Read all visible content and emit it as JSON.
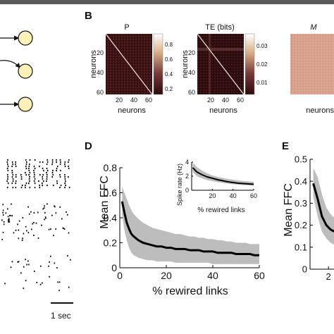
{
  "panels": {
    "B": {
      "letter": "B",
      "heatmaps": [
        {
          "title": "P",
          "ylabel": "neurons",
          "xlabel": "neurons",
          "xticks": [
            "20",
            "40",
            "60"
          ],
          "yticks": [
            "20",
            "40",
            "60"
          ],
          "colorbar_ticks": [
            "0.8",
            "0.6",
            "0.4",
            "0.2"
          ]
        },
        {
          "title": "TE (bits)",
          "ylabel": "neurons",
          "xlabel": "neurons",
          "xticks": [
            "20",
            "40",
            "60"
          ],
          "yticks": [
            "20",
            "40",
            "60"
          ],
          "colorbar_ticks": [
            "0.03",
            "0.02",
            "0.01"
          ]
        },
        {
          "title": "M",
          "xlabel": "neurons"
        }
      ]
    },
    "D": {
      "letter": "D"
    },
    "E": {
      "letter": "E"
    },
    "raster": {
      "scalebar_label": "1 sec"
    }
  },
  "chart_data": [
    {
      "type": "line",
      "panel": "D",
      "xlabel": "% rewired links",
      "ylabel": "Mean FFC",
      "xlim": [
        0,
        60
      ],
      "ylim": [
        0,
        0.8
      ],
      "xticks": [
        "0",
        "20",
        "40",
        "60"
      ],
      "yticks": [
        "0",
        "0.2",
        "0.4",
        "0.6",
        "0.8"
      ],
      "x": [
        1,
        2,
        3,
        4,
        5,
        6,
        8,
        10,
        12,
        14,
        16,
        18,
        20,
        22,
        24,
        26,
        28,
        30,
        32,
        34,
        36,
        38,
        40,
        42,
        44,
        46,
        48,
        50,
        52,
        54,
        56,
        58,
        60
      ],
      "series": [
        {
          "values": [
            0.53,
            0.44,
            0.36,
            0.31,
            0.27,
            0.25,
            0.22,
            0.2,
            0.19,
            0.18,
            0.17,
            0.17,
            0.16,
            0.16,
            0.15,
            0.15,
            0.15,
            0.14,
            0.14,
            0.14,
            0.13,
            0.13,
            0.13,
            0.12,
            0.12,
            0.12,
            0.12,
            0.11,
            0.11,
            0.11,
            0.11,
            0.1,
            0.1
          ],
          "band_high": [
            0.65,
            0.6,
            0.55,
            0.5,
            0.46,
            0.43,
            0.39,
            0.36,
            0.34,
            0.32,
            0.31,
            0.3,
            0.29,
            0.28,
            0.27,
            0.27,
            0.26,
            0.25,
            0.25,
            0.24,
            0.24,
            0.23,
            0.23,
            0.22,
            0.22,
            0.21,
            0.21,
            0.2,
            0.2,
            0.2,
            0.19,
            0.19,
            0.19
          ],
          "band_low": [
            0.42,
            0.3,
            0.22,
            0.16,
            0.12,
            0.1,
            0.08,
            0.07,
            0.06,
            0.06,
            0.05,
            0.05,
            0.05,
            0.05,
            0.04,
            0.04,
            0.04,
            0.04,
            0.04,
            0.04,
            0.04,
            0.04,
            0.03,
            0.03,
            0.03,
            0.03,
            0.03,
            0.03,
            0.03,
            0.03,
            0.03,
            0.03,
            0.03
          ]
        }
      ],
      "inset": {
        "type": "line",
        "xlabel": "% rewired links",
        "ylabel": "Spike rate (Hz)",
        "xlim": [
          0,
          60
        ],
        "ylim": [
          0,
          4
        ],
        "xticks": [
          "20",
          "40",
          "60"
        ],
        "yticks": [
          "0",
          "2",
          "4"
        ],
        "x": [
          1,
          5,
          10,
          15,
          20,
          25,
          30,
          35,
          40,
          45,
          50,
          55,
          60
        ],
        "values": [
          3.2,
          2.6,
          2.2,
          1.9,
          1.7,
          1.5,
          1.35,
          1.2,
          1.1,
          1.0,
          0.95,
          0.9,
          0.85
        ],
        "band_high": [
          3.9,
          3.3,
          2.8,
          2.4,
          2.1,
          1.9,
          1.75,
          1.6,
          1.5,
          1.4,
          1.3,
          1.25,
          1.2
        ],
        "band_low": [
          2.6,
          2.0,
          1.7,
          1.45,
          1.3,
          1.15,
          1.05,
          0.95,
          0.85,
          0.8,
          0.75,
          0.7,
          0.65
        ]
      }
    },
    {
      "type": "line",
      "panel": "E",
      "ylabel": "Mean FFC",
      "ylim": [
        0,
        0.5
      ],
      "yticks": [
        "0",
        "0.1",
        "0.2",
        "0.3",
        "0.4",
        "0.5"
      ],
      "xticks": [
        "2"
      ],
      "x": [
        0.6,
        1,
        1.4,
        1.8,
        2.2,
        2.6
      ],
      "series": [
        {
          "values": [
            0.39,
            0.32,
            0.24,
            0.2,
            0.18,
            0.17
          ],
          "band_high": [
            0.46,
            0.42,
            0.34,
            0.28,
            0.25,
            0.23
          ],
          "band_low": [
            0.33,
            0.24,
            0.17,
            0.14,
            0.12,
            0.11
          ]
        }
      ]
    }
  ]
}
